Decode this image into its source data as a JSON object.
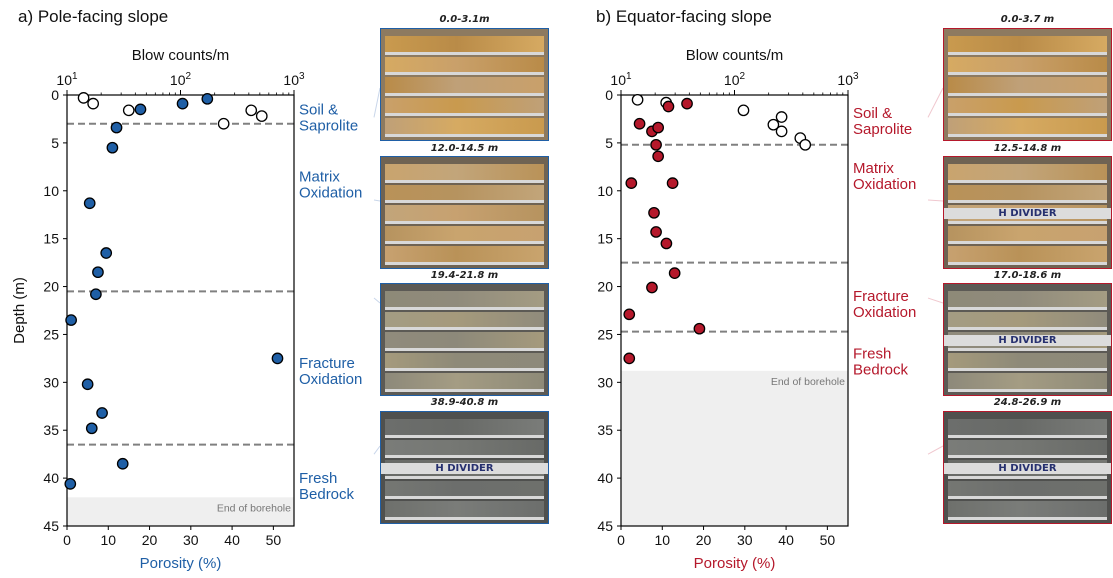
{
  "chart_data": [
    {
      "type": "scatter",
      "panel_title": "a) Pole-facing slope",
      "ylabel": "Depth (m)",
      "xlabel_bottom": "Porosity (%)",
      "xlabel_top": "Blow counts/m",
      "accent": "#1f5fa6",
      "xlim_bottom": [
        0,
        55
      ],
      "ylim": [
        45,
        0
      ],
      "xlim_top_log": [
        10,
        1000
      ],
      "xticks_bottom": [
        "0",
        "10",
        "20",
        "30",
        "40",
        "50"
      ],
      "yticks": [
        "0",
        "5",
        "10",
        "15",
        "20",
        "25",
        "30",
        "35",
        "40",
        "45"
      ],
      "xticks_top": [
        "10^1",
        "10^2",
        "10^3"
      ],
      "grid": false,
      "zone_boundaries": [
        3.0,
        20.5,
        36.5
      ],
      "zone_labels": [
        {
          "text": [
            "Soil &",
            "Saprolite"
          ],
          "depth": 1.5
        },
        {
          "text": [
            "Matrix",
            "Oxidation"
          ],
          "depth": 8.5
        },
        {
          "text": [
            "Fracture",
            "Oxidation"
          ],
          "depth": 28.0
        },
        {
          "text": [
            "Fresh",
            "Bedrock"
          ],
          "depth": 40.0
        }
      ],
      "end_of_borehole": {
        "text": "End of borehole",
        "depth": 42.0
      },
      "porosity_series": {
        "name": "",
        "color": "#1f5fa6",
        "x": [
          17.8,
          28.0,
          34.0,
          12.0,
          11.0,
          5.5,
          9.5,
          7.5,
          7.0,
          1.0,
          51.0,
          5.0,
          8.5,
          6.0,
          13.5,
          0.8
        ],
        "y": [
          1.5,
          0.9,
          0.4,
          3.4,
          5.5,
          11.3,
          16.5,
          18.5,
          20.8,
          23.5,
          27.5,
          30.2,
          33.2,
          34.8,
          38.5,
          40.6
        ]
      },
      "blow_series": {
        "name": "",
        "x": [
          14,
          17,
          35,
          240,
          520,
          420
        ],
        "y": [
          0.3,
          0.9,
          1.6,
          3.0,
          2.2,
          1.6
        ]
      },
      "photos": [
        {
          "title": "0.0-3.1m",
          "style": "saprolite",
          "divider_text": ""
        },
        {
          "title": "12.0-14.5 m",
          "style": "matrix",
          "divider_text": ""
        },
        {
          "title": "19.4-21.8 m",
          "style": "fracture",
          "divider_text": ""
        },
        {
          "title": "38.9-40.8 m",
          "style": "fresh",
          "divider_text": "H DIVIDER"
        }
      ]
    },
    {
      "type": "scatter",
      "panel_title": "b) Equator-facing slope",
      "ylabel": "",
      "xlabel_bottom": "Porosity (%)",
      "xlabel_top": "Blow counts/m",
      "accent": "#b5182b",
      "xlim_bottom": [
        0,
        55
      ],
      "ylim": [
        45,
        0
      ],
      "xlim_top_log": [
        10,
        1000
      ],
      "xticks_bottom": [
        "0",
        "10",
        "20",
        "30",
        "40",
        "50"
      ],
      "yticks": [
        "0",
        "5",
        "10",
        "15",
        "20",
        "25",
        "30",
        "35",
        "40",
        "45"
      ],
      "xticks_top": [
        "10^1",
        "10^2",
        "10^3"
      ],
      "grid": false,
      "zone_boundaries": [
        5.2,
        17.5,
        24.7
      ],
      "zone_labels": [
        {
          "text": [
            "Soil &",
            "Saprolite"
          ],
          "depth": 1.9
        },
        {
          "text": [
            "Matrix",
            "Oxidation"
          ],
          "depth": 7.6
        },
        {
          "text": [
            "Fracture",
            "Oxidation"
          ],
          "depth": 21.0
        },
        {
          "text": [
            "Fresh",
            "Bedrock"
          ],
          "depth": 27.0
        }
      ],
      "end_of_borehole": {
        "text": "End of borehole",
        "depth": 28.8
      },
      "porosity_series": {
        "name": "",
        "color": "#b5182b",
        "x": [
          16.0,
          11.5,
          4.5,
          7.5,
          9.0,
          8.5,
          9.0,
          12.5,
          2.5,
          8.0,
          8.5,
          11.0,
          13.0,
          7.5,
          2.0,
          19.0,
          2.0
        ],
        "y": [
          0.9,
          1.2,
          3.0,
          3.8,
          3.4,
          5.2,
          6.4,
          9.2,
          9.2,
          12.3,
          14.3,
          15.5,
          18.6,
          20.1,
          22.9,
          24.4,
          27.5
        ]
      },
      "blow_series": {
        "name": "",
        "x": [
          25,
          14,
          120,
          220,
          260,
          260,
          380,
          420
        ],
        "y": [
          0.8,
          0.5,
          1.6,
          3.1,
          2.3,
          3.8,
          4.5,
          5.2
        ]
      },
      "photos": [
        {
          "title": "0.0-3.7 m",
          "style": "saprolite",
          "divider_text": ""
        },
        {
          "title": "12.5-14.8 m",
          "style": "matrix",
          "divider_text": "H DIVIDER"
        },
        {
          "title": "17.0-18.6 m",
          "style": "fracture",
          "divider_text": "H DIVIDER"
        },
        {
          "title": "24.8-26.9 m",
          "style": "fresh",
          "divider_text": "H DIVIDER"
        }
      ]
    }
  ]
}
